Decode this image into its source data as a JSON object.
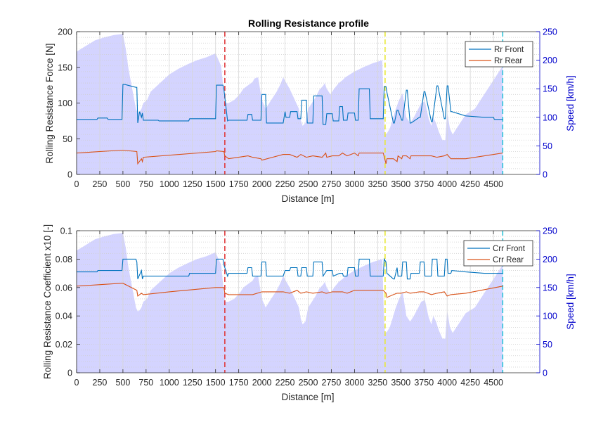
{
  "figure": {
    "title": "Rolling Resistance profile"
  },
  "colors": {
    "front": "#0072BD",
    "rear": "#D95319",
    "speed_fill": "#CCCCFF",
    "speed_axis": "#0000CC",
    "marker_red": "#E0383A",
    "marker_yellow": "#E8E838",
    "marker_cyan": "#2EC4D8"
  },
  "chart_data": [
    {
      "type": "line",
      "title": "Rolling Resistance profile",
      "xlabel": "Distance [m]",
      "ylabel": "Rolling Resistance Force [N]",
      "y2label": "Speed [km/h]",
      "xlim": [
        0,
        5000
      ],
      "ylim": [
        0,
        200
      ],
      "y2lim": [
        0,
        250
      ],
      "xticks": [
        "0",
        "250",
        "500",
        "750",
        "1000",
        "1250",
        "1500",
        "1750",
        "2000",
        "2250",
        "2500",
        "2750",
        "3000",
        "3250",
        "3500",
        "3750",
        "4000",
        "4250",
        "4500"
      ],
      "yticks": [
        "0",
        "50",
        "100",
        "150",
        "200"
      ],
      "y2ticks": [
        "0",
        "50",
        "100",
        "150",
        "200",
        "250"
      ],
      "grid": true,
      "legend": "top-right",
      "markers_x": [
        1600,
        3330,
        4600
      ],
      "series": [
        {
          "name": "Rr Front",
          "x": [
            0,
            220,
            230,
            330,
            340,
            490,
            500,
            520,
            640,
            650,
            660,
            670,
            680,
            700,
            710,
            720,
            880,
            890,
            1210,
            1220,
            1500,
            1510,
            1580,
            1590,
            1630,
            1640,
            1840,
            1850,
            1890,
            1900,
            1990,
            2000,
            2040,
            2050,
            2230,
            2250,
            2260,
            2300,
            2310,
            2380,
            2390,
            2420,
            2430,
            2480,
            2490,
            2550,
            2560,
            2650,
            2660,
            2690,
            2700,
            2760,
            2770,
            2830,
            2840,
            2870,
            2880,
            2920,
            2930,
            3000,
            3010,
            3040,
            3050,
            3160,
            3170,
            3310,
            3320,
            3340,
            3350,
            3420,
            3430,
            3460,
            3470,
            3510,
            3520,
            3560,
            3570,
            3600,
            3610,
            3700,
            3710,
            3750,
            3760,
            3830,
            3840,
            3890,
            3900,
            3970,
            3980,
            4000,
            4010,
            4040,
            4050,
            4200,
            4400,
            4500,
            4510,
            4600
          ],
          "y": [
            77,
            77,
            79,
            79,
            77,
            77,
            126,
            126,
            122,
            122,
            72,
            80,
            88,
            80,
            86,
            76,
            76,
            75,
            75,
            78,
            78,
            125,
            125,
            119,
            75,
            76,
            76,
            84,
            84,
            76,
            76,
            112,
            112,
            72,
            72,
            88,
            80,
            80,
            88,
            88,
            78,
            78,
            104,
            104,
            72,
            72,
            110,
            110,
            70,
            70,
            85,
            85,
            75,
            75,
            95,
            95,
            76,
            76,
            86,
            86,
            76,
            76,
            120,
            120,
            78,
            78,
            123,
            123,
            115,
            72,
            72,
            90,
            90,
            76,
            76,
            118,
            118,
            72,
            72,
            80,
            80,
            116,
            116,
            74,
            74,
            124,
            124,
            78,
            78,
            124,
            124,
            88,
            88,
            82,
            80,
            80,
            77,
            77
          ]
        },
        {
          "name": "Rr Rear",
          "x": [
            0,
            490,
            500,
            650,
            660,
            700,
            710,
            720,
            1500,
            1510,
            1590,
            1600,
            1640,
            1850,
            1900,
            1990,
            2000,
            2230,
            2300,
            2380,
            2420,
            2480,
            2550,
            2650,
            2690,
            2700,
            2760,
            2830,
            2870,
            2920,
            3000,
            3040,
            3050,
            3310,
            3340,
            3350,
            3420,
            3460,
            3470,
            3510,
            3520,
            3560,
            3600,
            3610,
            3700,
            3750,
            3830,
            3890,
            3970,
            4000,
            4040,
            4200,
            4600
          ],
          "y": [
            30,
            34,
            34,
            32,
            15,
            22,
            18,
            24,
            32,
            33,
            32,
            26,
            22,
            26,
            24,
            22,
            20,
            28,
            28,
            24,
            28,
            24,
            26,
            24,
            30,
            24,
            26,
            26,
            30,
            26,
            30,
            26,
            30,
            30,
            15,
            22,
            22,
            18,
            26,
            22,
            26,
            26,
            22,
            26,
            26,
            26,
            26,
            24,
            26,
            28,
            22,
            22,
            30
          ]
        }
      ]
    },
    {
      "type": "line",
      "xlabel": "Distance [m]",
      "ylabel": "Rolling Resistance Coefficient x10 [-]",
      "y2label": "Speed [km/h]",
      "xlim": [
        0,
        5000
      ],
      "ylim": [
        0,
        0.1
      ],
      "y2lim": [
        0,
        250
      ],
      "xticks": [
        "0",
        "250",
        "500",
        "750",
        "1000",
        "1250",
        "1500",
        "1750",
        "2000",
        "2250",
        "2500",
        "2750",
        "3000",
        "3250",
        "3500",
        "3750",
        "4000",
        "4250",
        "4500"
      ],
      "yticks": [
        "0",
        "0.02",
        "0.04",
        "0.06",
        "0.08",
        "0.1"
      ],
      "y2ticks": [
        "0",
        "50",
        "100",
        "150",
        "200",
        "250"
      ],
      "grid": true,
      "legend": "top-right",
      "markers_x": [
        1600,
        3330,
        4600
      ],
      "series": [
        {
          "name": "Crr Front",
          "x": [
            0,
            220,
            230,
            490,
            500,
            640,
            650,
            660,
            700,
            710,
            720,
            880,
            890,
            1210,
            1220,
            1500,
            1510,
            1580,
            1590,
            1630,
            1640,
            1840,
            1850,
            1890,
            1900,
            1990,
            2000,
            2040,
            2050,
            2230,
            2250,
            2300,
            2310,
            2380,
            2390,
            2420,
            2430,
            2480,
            2490,
            2550,
            2560,
            2650,
            2660,
            2700,
            2760,
            2770,
            2840,
            2870,
            2880,
            2920,
            2930,
            3000,
            3010,
            3040,
            3050,
            3160,
            3170,
            3310,
            3320,
            3340,
            3350,
            3420,
            3430,
            3460,
            3470,
            3510,
            3520,
            3560,
            3570,
            3600,
            3610,
            3700,
            3710,
            3750,
            3760,
            3830,
            3840,
            3890,
            3900,
            3970,
            3980,
            4000,
            4010,
            4040,
            4050,
            4200,
            4400,
            4600
          ],
          "y": [
            0.071,
            0.071,
            0.072,
            0.072,
            0.08,
            0.08,
            0.078,
            0.066,
            0.072,
            0.066,
            0.068,
            0.068,
            0.068,
            0.068,
            0.07,
            0.07,
            0.08,
            0.08,
            0.076,
            0.068,
            0.07,
            0.07,
            0.074,
            0.074,
            0.068,
            0.068,
            0.078,
            0.078,
            0.068,
            0.068,
            0.072,
            0.072,
            0.074,
            0.074,
            0.068,
            0.068,
            0.074,
            0.074,
            0.068,
            0.068,
            0.078,
            0.078,
            0.068,
            0.072,
            0.072,
            0.068,
            0.07,
            0.07,
            0.068,
            0.068,
            0.074,
            0.074,
            0.068,
            0.068,
            0.08,
            0.08,
            0.068,
            0.068,
            0.08,
            0.078,
            0.07,
            0.066,
            0.066,
            0.074,
            0.068,
            0.068,
            0.078,
            0.078,
            0.066,
            0.066,
            0.07,
            0.07,
            0.078,
            0.078,
            0.068,
            0.068,
            0.08,
            0.08,
            0.068,
            0.068,
            0.08,
            0.08,
            0.07,
            0.07,
            0.072,
            0.071,
            0.07,
            0.07
          ]
        },
        {
          "name": "Crr Rear",
          "x": [
            0,
            490,
            500,
            650,
            660,
            700,
            720,
            1000,
            1500,
            1590,
            1600,
            1640,
            1900,
            2000,
            2230,
            2300,
            2380,
            2420,
            2480,
            2550,
            2650,
            2690,
            2700,
            2760,
            2870,
            2920,
            3000,
            3050,
            3310,
            3340,
            3350,
            3420,
            3460,
            3500,
            3560,
            3600,
            3700,
            3750,
            3830,
            3890,
            3970,
            4000,
            4040,
            4200,
            4600
          ],
          "y": [
            0.061,
            0.063,
            0.063,
            0.058,
            0.054,
            0.056,
            0.055,
            0.057,
            0.06,
            0.06,
            0.056,
            0.055,
            0.055,
            0.057,
            0.057,
            0.056,
            0.058,
            0.056,
            0.057,
            0.056,
            0.057,
            0.056,
            0.056,
            0.057,
            0.057,
            0.056,
            0.058,
            0.058,
            0.058,
            0.056,
            0.053,
            0.055,
            0.056,
            0.056,
            0.057,
            0.056,
            0.057,
            0.057,
            0.055,
            0.056,
            0.057,
            0.054,
            0.055,
            0.056,
            0.061
          ]
        }
      ]
    }
  ],
  "speed_profile": {
    "x": [
      0,
      100,
      200,
      300,
      400,
      500,
      530,
      560,
      600,
      640,
      660,
      680,
      700,
      720,
      760,
      800,
      900,
      1000,
      1100,
      1200,
      1300,
      1400,
      1500,
      1560,
      1600,
      1640,
      1700,
      1760,
      1800,
      1900,
      1920,
      1960,
      2000,
      2040,
      2080,
      2120,
      2160,
      2200,
      2230,
      2300,
      2400,
      2420,
      2440,
      2470,
      2500,
      2540,
      2580,
      2620,
      2660,
      2680,
      2700,
      2740,
      2780,
      2830,
      2870,
      2900,
      3000,
      3100,
      3200,
      3300,
      3320,
      3330,
      3350,
      3380,
      3410,
      3440,
      3480,
      3520,
      3560,
      3600,
      3640,
      3680,
      3720,
      3760,
      3800,
      3830,
      3850,
      3880,
      3910,
      3950,
      3980,
      4000,
      4030,
      4060,
      4100,
      4200,
      4300,
      4400,
      4500,
      4600
    ],
    "y": [
      215,
      225,
      235,
      240,
      244,
      246,
      220,
      185,
      150,
      115,
      108,
      110,
      115,
      125,
      130,
      145,
      160,
      175,
      185,
      193,
      200,
      205,
      212,
      190,
      125,
      125,
      130,
      140,
      150,
      162,
      168,
      170,
      130,
      115,
      125,
      135,
      145,
      158,
      170,
      150,
      115,
      95,
      85,
      90,
      115,
      125,
      135,
      148,
      155,
      160,
      150,
      140,
      150,
      160,
      165,
      170,
      180,
      188,
      195,
      200,
      85,
      70,
      72,
      80,
      95,
      112,
      130,
      142,
      100,
      90,
      100,
      112,
      125,
      128,
      98,
      85,
      100,
      90,
      75,
      60,
      60,
      110,
      80,
      70,
      80,
      105,
      115,
      140,
      165,
      190
    ]
  }
}
